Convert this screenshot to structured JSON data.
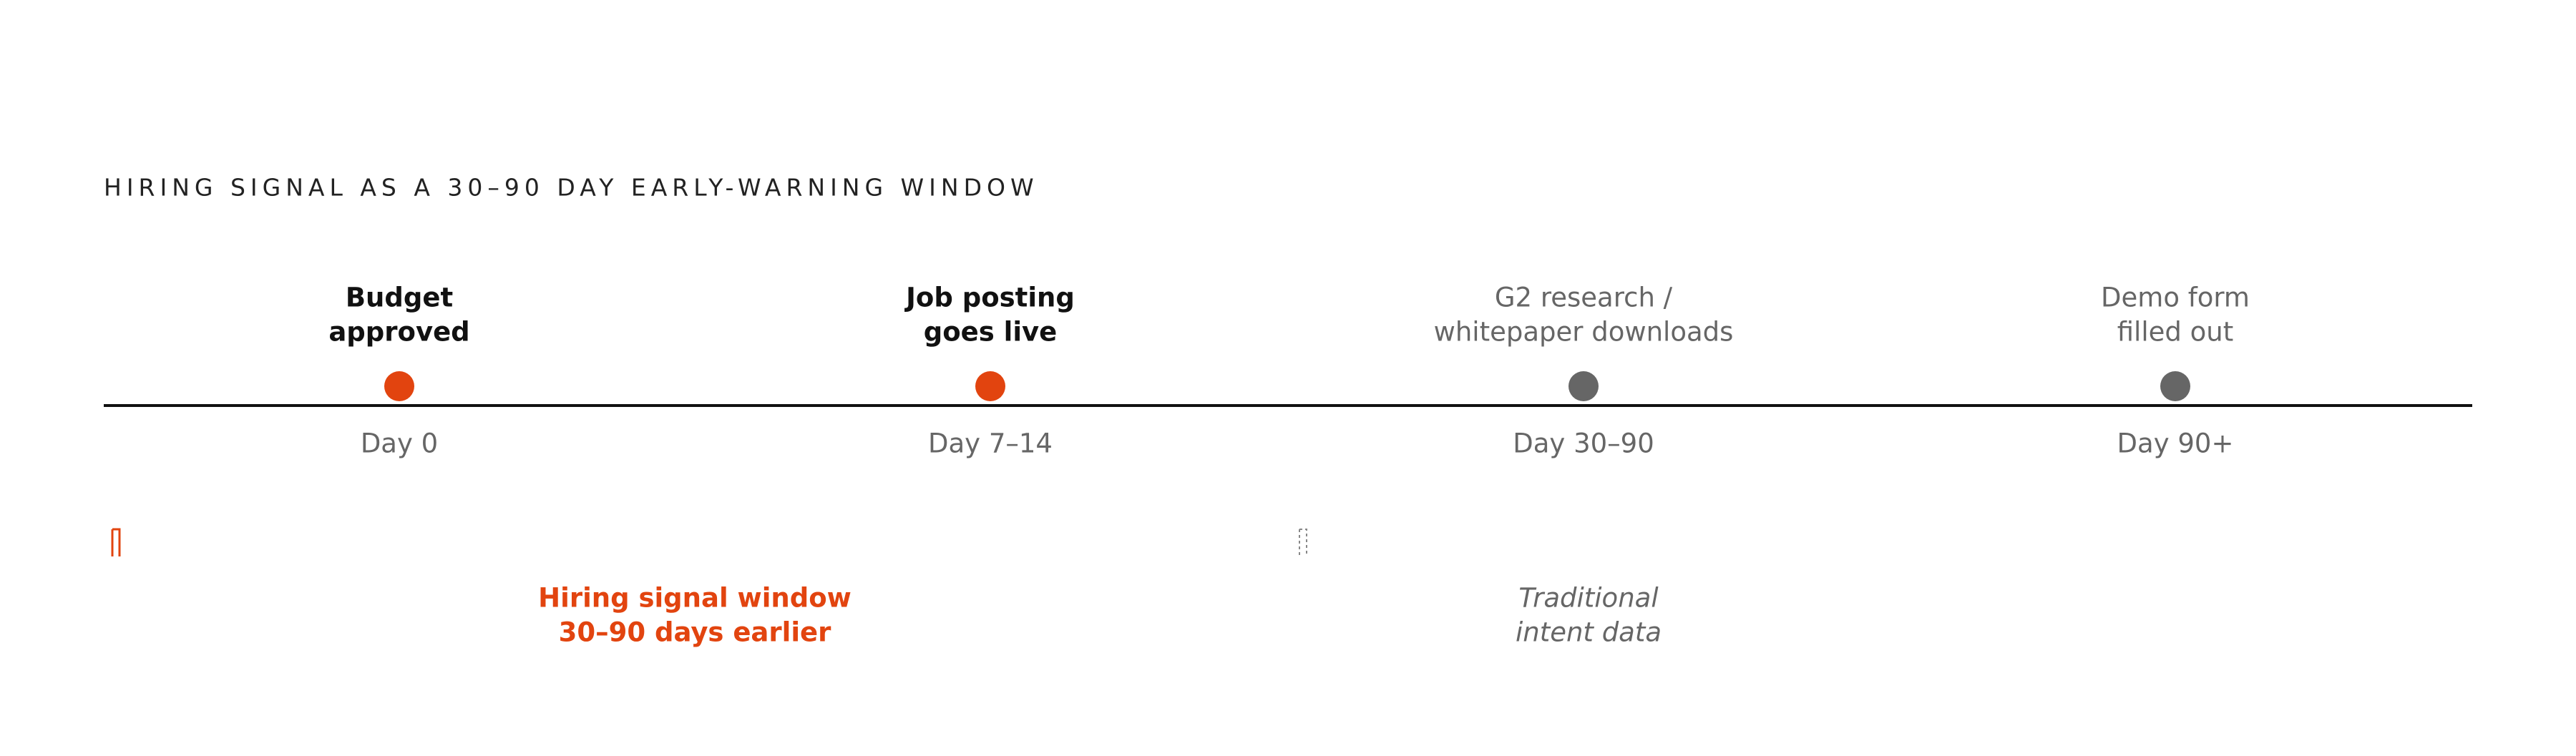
{
  "title": "HIRING SIGNAL AS A 30–90 DAY EARLY-WARNING WINDOW",
  "events": [
    {
      "label": [
        "Budget",
        "approved"
      ],
      "day": "Day 0",
      "color": "#e2440f",
      "bold": true
    },
    {
      "label": [
        "Job posting",
        "goes live"
      ],
      "day": "Day 7–14",
      "color": "#e2440f",
      "bold": true
    },
    {
      "label": [
        "G2 research /",
        "whitepaper downloads"
      ],
      "day": "Day 30–90",
      "color": "#666666",
      "bold": false
    },
    {
      "label": [
        "Demo form",
        "filled out"
      ],
      "day": "Day 90+",
      "color": "#666666",
      "bold": false
    }
  ],
  "windows": [
    {
      "label": [
        "Hiring signal window",
        "30–90 days earlier"
      ],
      "color": "#e2440f",
      "style": "bold"
    },
    {
      "label": [
        "Traditional",
        "intent data"
      ],
      "color": "#666666",
      "style": "italic"
    }
  ]
}
